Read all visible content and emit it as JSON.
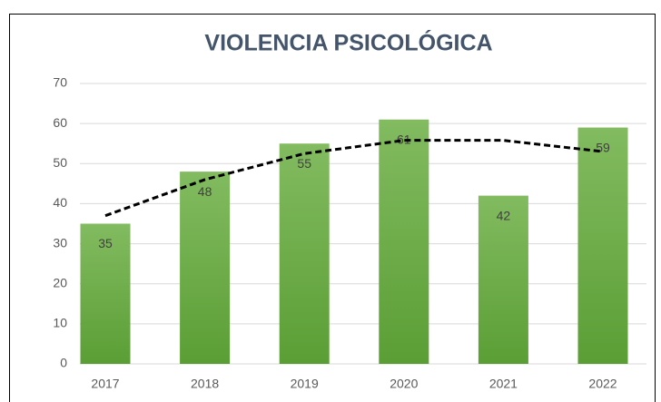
{
  "chart_data": {
    "type": "bar",
    "title": "VIOLENCIA PSICOLÓGICA",
    "categories": [
      "2017",
      "2018",
      "2019",
      "2020",
      "2021",
      "2022"
    ],
    "values": [
      35,
      48,
      55,
      61,
      42,
      59
    ],
    "color": "#70ad47",
    "ylim": [
      0,
      70
    ],
    "yticks": [
      0,
      10,
      20,
      30,
      40,
      50,
      60,
      70
    ],
    "grid": true,
    "trendline": {
      "values": [
        37,
        46,
        52.5,
        55.8,
        55.8,
        53
      ],
      "color": "#000000"
    }
  }
}
